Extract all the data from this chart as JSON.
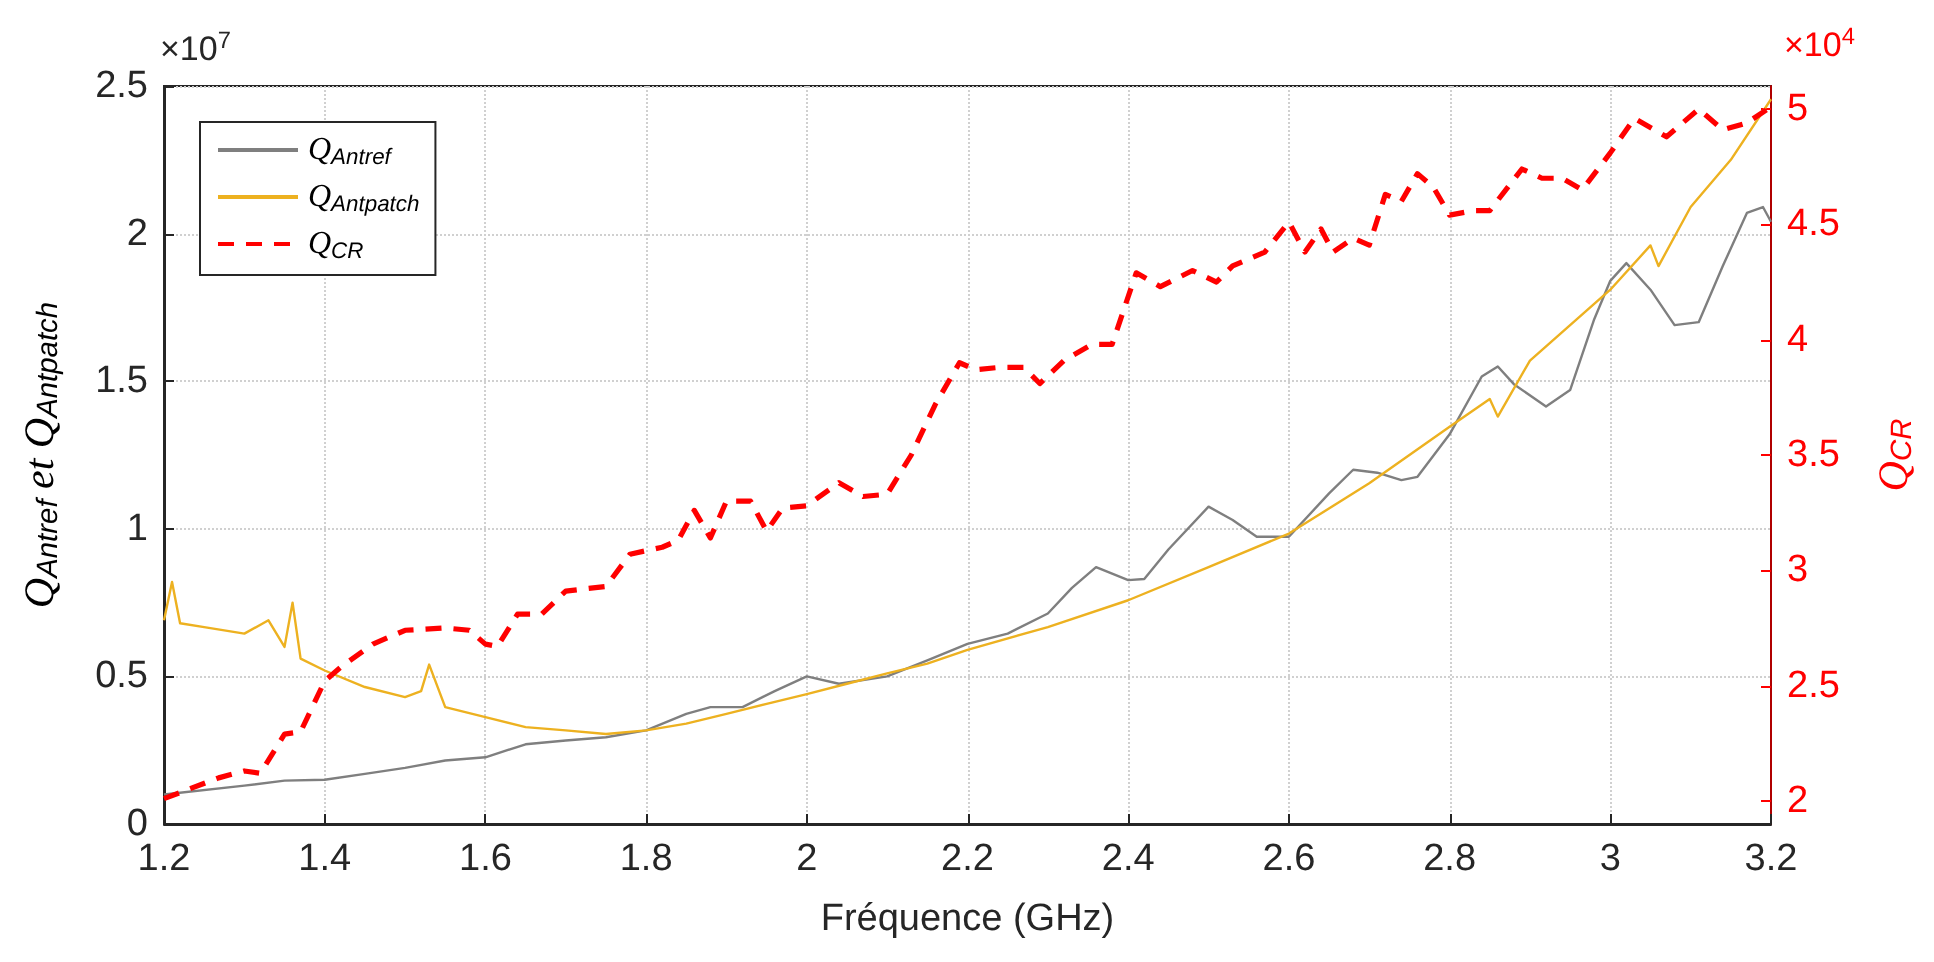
{
  "chart_data": {
    "type": "line",
    "xlabel": "Fréquence (GHz)",
    "ylabel": "Q$_{Ant}$$_{ref}$ et Q$_{Ant}$$_{patch}$",
    "y2label": "Q$_{CR}$",
    "annotations": [
      "×10$^{7}$",
      "×10$^{4}$"
    ],
    "xlim": [
      1.2,
      3.2
    ],
    "xticks": [
      1.2,
      1.4,
      1.6,
      1.8,
      2,
      2.2,
      2.4,
      2.6,
      2.8,
      3,
      3.2
    ],
    "ylim": [
      0,
      2.5
    ],
    "yticks": [
      0,
      0.5,
      1,
      1.5,
      2,
      2.5
    ],
    "y2lim": [
      1.9,
      5.1
    ],
    "y2ticks": [
      2,
      2.5,
      3,
      3.5,
      4,
      4.5,
      5
    ],
    "grid": true,
    "legend": "top left",
    "marker": "none",
    "series": [
      {
        "name": "Q$_{Ant}$$_{ref}$",
        "color": "#7f7f7f",
        "line_style": "solid",
        "x": [
          1.2,
          1.3,
          1.35,
          1.4,
          1.45,
          1.5,
          1.55,
          1.6,
          1.65,
          1.7,
          1.75,
          1.8,
          1.85,
          1.88,
          1.92,
          1.96,
          2,
          2.04,
          2.1,
          2.15,
          2.2,
          2.25,
          2.3,
          2.33,
          2.36,
          2.4,
          2.42,
          2.45,
          2.5,
          2.53,
          2.56,
          2.6,
          2.65,
          2.68,
          2.71,
          2.74,
          2.76,
          2.8,
          2.84,
          2.86,
          2.88,
          2.92,
          2.95,
          2.98,
          3,
          3.02,
          3.05,
          3.08,
          3.11,
          3.14,
          3.17,
          3.19,
          3.2
        ],
        "values": [
          0.1,
          0.13,
          0.147,
          0.15,
          0.17,
          0.19,
          0.215,
          0.226,
          0.27,
          0.283,
          0.294,
          0.317,
          0.373,
          0.396,
          0.396,
          0.45,
          0.5,
          0.475,
          0.5,
          0.554,
          0.61,
          0.645,
          0.713,
          0.8,
          0.87,
          0.826,
          0.83,
          0.93,
          1.075,
          1.03,
          0.973,
          0.973,
          1.12,
          1.2,
          1.19,
          1.165,
          1.176,
          1.32,
          1.516,
          1.55,
          1.49,
          1.414,
          1.47,
          1.71,
          1.84,
          1.9,
          1.81,
          1.69,
          1.7,
          1.89,
          2.07,
          2.09,
          2.04
        ]
      },
      {
        "name": "Q$_{Ant}$$_{patch}$",
        "color": "#edb120",
        "line_style": "solid",
        "x": [
          1.2,
          1.21,
          1.22,
          1.25,
          1.3,
          1.33,
          1.35,
          1.36,
          1.37,
          1.4,
          1.45,
          1.5,
          1.52,
          1.53,
          1.55,
          1.6,
          1.65,
          1.7,
          1.75,
          1.8,
          1.85,
          1.9,
          1.95,
          2,
          2.05,
          2.1,
          2.15,
          2.2,
          2.3,
          2.4,
          2.5,
          2.6,
          2.7,
          2.8,
          2.85,
          2.86,
          2.9,
          3,
          3.05,
          3.06,
          3.1,
          3.15,
          3.2
        ],
        "values": [
          0.69,
          0.82,
          0.68,
          0.667,
          0.645,
          0.69,
          0.6,
          0.75,
          0.56,
          0.52,
          0.464,
          0.43,
          0.45,
          0.54,
          0.396,
          0.362,
          0.328,
          0.317,
          0.305,
          0.317,
          0.34,
          0.373,
          0.407,
          0.44,
          0.475,
          0.51,
          0.543,
          0.59,
          0.667,
          0.758,
          0.87,
          0.984,
          1.154,
          1.346,
          1.44,
          1.38,
          1.57,
          1.81,
          1.96,
          1.89,
          2.09,
          2.25,
          2.455
        ]
      },
      {
        "name": "Q$_{CR}$",
        "color": "#ff0000",
        "line_style": "dashed",
        "axis": "y2",
        "x": [
          1.2,
          1.268,
          1.3,
          1.32,
          1.35,
          1.37,
          1.4,
          1.42,
          1.46,
          1.5,
          1.55,
          1.58,
          1.6,
          1.615,
          1.64,
          1.67,
          1.7,
          1.75,
          1.78,
          1.82,
          1.84,
          1.86,
          1.88,
          1.9,
          1.93,
          1.95,
          1.97,
          2,
          2.04,
          2.07,
          2.1,
          2.13,
          2.16,
          2.19,
          2.21,
          2.24,
          2.27,
          2.29,
          2.32,
          2.355,
          2.38,
          2.41,
          2.44,
          2.48,
          2.51,
          2.53,
          2.57,
          2.6,
          2.62,
          2.64,
          2.655,
          2.68,
          2.7,
          2.72,
          2.74,
          2.76,
          2.78,
          2.8,
          2.83,
          2.85,
          2.89,
          2.915,
          2.94,
          2.965,
          3,
          3.03,
          3.07,
          3.11,
          3.14,
          3.17,
          3.2
        ],
        "values": [
          2.01,
          2.1,
          2.13,
          2.12,
          2.29,
          2.3,
          2.52,
          2.58,
          2.68,
          2.74,
          2.75,
          2.74,
          2.68,
          2.67,
          2.81,
          2.81,
          2.91,
          2.93,
          3.07,
          3.1,
          3.13,
          3.26,
          3.14,
          3.3,
          3.3,
          3.17,
          3.27,
          3.28,
          3.38,
          3.32,
          3.33,
          3.5,
          3.72,
          3.9,
          3.87,
          3.88,
          3.88,
          3.81,
          3.91,
          3.98,
          3.98,
          4.29,
          4.23,
          4.3,
          4.25,
          4.32,
          4.38,
          4.51,
          4.38,
          4.48,
          4.38,
          4.44,
          4.41,
          4.63,
          4.6,
          4.72,
          4.66,
          4.54,
          4.56,
          4.56,
          4.74,
          4.7,
          4.7,
          4.65,
          4.81,
          4.96,
          4.88,
          5,
          4.91,
          4.94,
          5.01
        ]
      }
    ]
  }
}
